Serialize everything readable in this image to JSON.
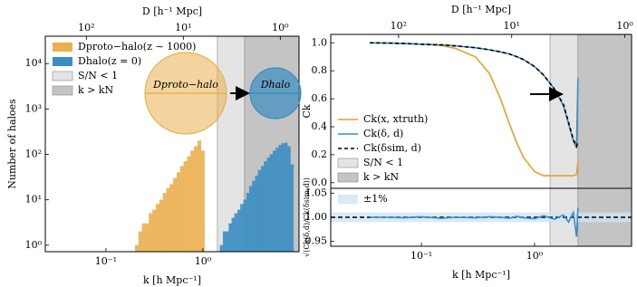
{
  "chart_data": [
    {
      "type": "histogram",
      "xscale": "log",
      "yscale": "log",
      "xlim": [
        0.0237,
        9.8
      ],
      "ylim": [
        0.72,
        40000
      ],
      "xticks": [
        {
          "value": 0.1,
          "label": "10⁻¹"
        },
        {
          "value": 1,
          "label": "10⁰"
        }
      ],
      "yticks": [
        {
          "value": 1,
          "label": "10⁰"
        },
        {
          "value": 10,
          "label": "10¹"
        },
        {
          "value": 100,
          "label": "10²"
        },
        {
          "value": 1000,
          "label": "10³"
        },
        {
          "value": 10000,
          "label": "10⁴"
        }
      ],
      "x2ticks": [
        {
          "value": 100,
          "label": "10²"
        },
        {
          "value": 10,
          "label": "10¹"
        },
        {
          "value": 1,
          "label": "10⁰"
        }
      ],
      "xlabel": "k [h Mpc⁻¹]",
      "x2label": "D [h⁻¹ Mpc]",
      "ylabel": "Number of haloes",
      "legend": "upper left",
      "series": [
        {
          "name": "Dproto−halo(z ∼ 1000)",
          "color": "#eab04f",
          "bins": [
            0.2,
            0.217,
            0.236,
            0.256,
            0.278,
            0.302,
            0.328,
            0.356,
            0.387,
            0.42,
            0.456,
            0.495,
            0.538,
            0.584,
            0.634,
            0.689,
            0.748,
            0.812,
            0.882,
            0.958,
            1.04
          ],
          "values": [
            1,
            2,
            3,
            3,
            5,
            6,
            8,
            10,
            14,
            18,
            22,
            30,
            40,
            55,
            70,
            90,
            120,
            150,
            200,
            120
          ]
        },
        {
          "name": "Dhalo(z = 0)",
          "color": "#3b8ec2",
          "bins": [
            1.5,
            1.61,
            1.72,
            1.85,
            1.98,
            2.12,
            2.28,
            2.44,
            2.62,
            2.81,
            3.01,
            3.23,
            3.46,
            3.71,
            3.98,
            4.27,
            4.58,
            4.91,
            5.26,
            5.64,
            6.05,
            6.49,
            6.96,
            7.46,
            8.0,
            8.6
          ],
          "values": [
            1,
            2,
            2,
            3,
            4,
            5,
            6,
            8,
            10,
            14,
            20,
            26,
            34,
            45,
            55,
            70,
            85,
            100,
            120,
            140,
            160,
            175,
            180,
            150,
            60
          ]
        }
      ],
      "spans": [
        {
          "name": "S/N < 1",
          "xmin": 1.41,
          "xmax": 2.69,
          "color": "#e4e4e4"
        },
        {
          "name": "k > kN",
          "xmin": 2.69,
          "xmax": 9.8,
          "color": "#c4c4c4"
        }
      ],
      "annotations": [
        "Dproto−halo",
        "Dhalo"
      ]
    },
    {
      "type": "line",
      "xscale": "log",
      "xlim": [
        0.0158,
        7.2
      ],
      "ylim": [
        -0.04,
        1.06
      ],
      "yticks": [
        {
          "value": 0,
          "label": "0.0"
        },
        0.2,
        0.4,
        0.6,
        0.8,
        {
          "value": 1,
          "label": "1.0"
        }
      ],
      "x2ticks": [
        {
          "value": 100,
          "label": "10²"
        },
        {
          "value": 10,
          "label": "10¹"
        },
        {
          "value": 1,
          "label": "10⁰"
        }
      ],
      "x2label": "D [h⁻¹ Mpc]",
      "ylabel": "Ck",
      "legend": "lower left",
      "x": [
        0.035,
        0.05,
        0.07,
        0.1,
        0.15,
        0.2,
        0.3,
        0.4,
        0.5,
        0.6,
        0.7,
        0.8,
        1.0,
        1.2,
        1.5,
        1.8,
        2.0,
        2.2,
        2.35,
        2.42
      ],
      "series": [
        {
          "name": "Ck(x, xtruth)",
          "color": "#e89f2c",
          "values": [
            1.0,
            1.0,
            0.995,
            0.99,
            0.98,
            0.96,
            0.9,
            0.78,
            0.6,
            0.42,
            0.28,
            0.18,
            0.08,
            0.05,
            0.05,
            0.05,
            0.05,
            0.05,
            0.06,
            0.15
          ]
        },
        {
          "name": "Ck(δ, d)",
          "color": "#3b8ec2",
          "values": [
            1.0,
            0.998,
            0.995,
            0.99,
            0.985,
            0.978,
            0.965,
            0.95,
            0.935,
            0.92,
            0.9,
            0.88,
            0.83,
            0.77,
            0.67,
            0.55,
            0.42,
            0.3,
            0.25,
            0.75
          ]
        },
        {
          "name": "Ck(δsim, d)",
          "color": "#000000",
          "dashed": true,
          "values": [
            1.0,
            0.998,
            0.995,
            0.99,
            0.985,
            0.978,
            0.965,
            0.95,
            0.935,
            0.92,
            0.9,
            0.88,
            0.83,
            0.77,
            0.67,
            0.56,
            0.43,
            0.31,
            0.26,
            0.3
          ]
        }
      ],
      "spans": [
        {
          "name": "S/N < 1",
          "xmin": 1.37,
          "xmax": 2.42,
          "color": "#e4e4e4"
        },
        {
          "name": "k > kN",
          "xmin": 2.42,
          "xmax": 7.2,
          "color": "#c4c4c4"
        }
      ]
    },
    {
      "type": "line",
      "xscale": "log",
      "xlim": [
        0.0158,
        7.2
      ],
      "ylim": [
        0.94,
        1.06
      ],
      "xticks": [
        {
          "value": 0.1,
          "label": "10⁻¹"
        },
        {
          "value": 1,
          "label": "10⁰"
        }
      ],
      "yticks": [
        0.95,
        {
          "value": 1,
          "label": "1.00"
        },
        1.05
      ],
      "xlabel": "k [h Mpc⁻¹]",
      "ylabel": "√(Ck(δ,d)/Ck(δsim,d))",
      "legend": "upper left",
      "x": [
        0.035,
        0.05,
        0.07,
        0.1,
        0.15,
        0.2,
        0.3,
        0.4,
        0.5,
        0.6,
        0.7,
        0.8,
        1.0,
        1.2,
        1.5,
        1.8,
        2.0,
        2.2,
        2.35,
        2.42
      ],
      "series": [
        {
          "color": "#3b8ec2",
          "values": [
            1.0,
            1.0,
            0.999,
            1.001,
            0.998,
            1.0,
            0.999,
            1.001,
            1.0,
            0.998,
            1.002,
            0.999,
            0.997,
            1.003,
            0.996,
            1.005,
            0.99,
            1.01,
            0.96,
            1.02
          ]
        }
      ],
      "band": {
        "name": "±1%",
        "low": 0.99,
        "high": 1.01,
        "color": "#cfe3f3"
      },
      "reference_line": 1,
      "spans": [
        {
          "xmin": 1.37,
          "xmax": 2.42,
          "color": "#e4e4e4"
        },
        {
          "xmin": 2.42,
          "xmax": 7.2,
          "color": "#c4c4c4"
        }
      ]
    }
  ]
}
